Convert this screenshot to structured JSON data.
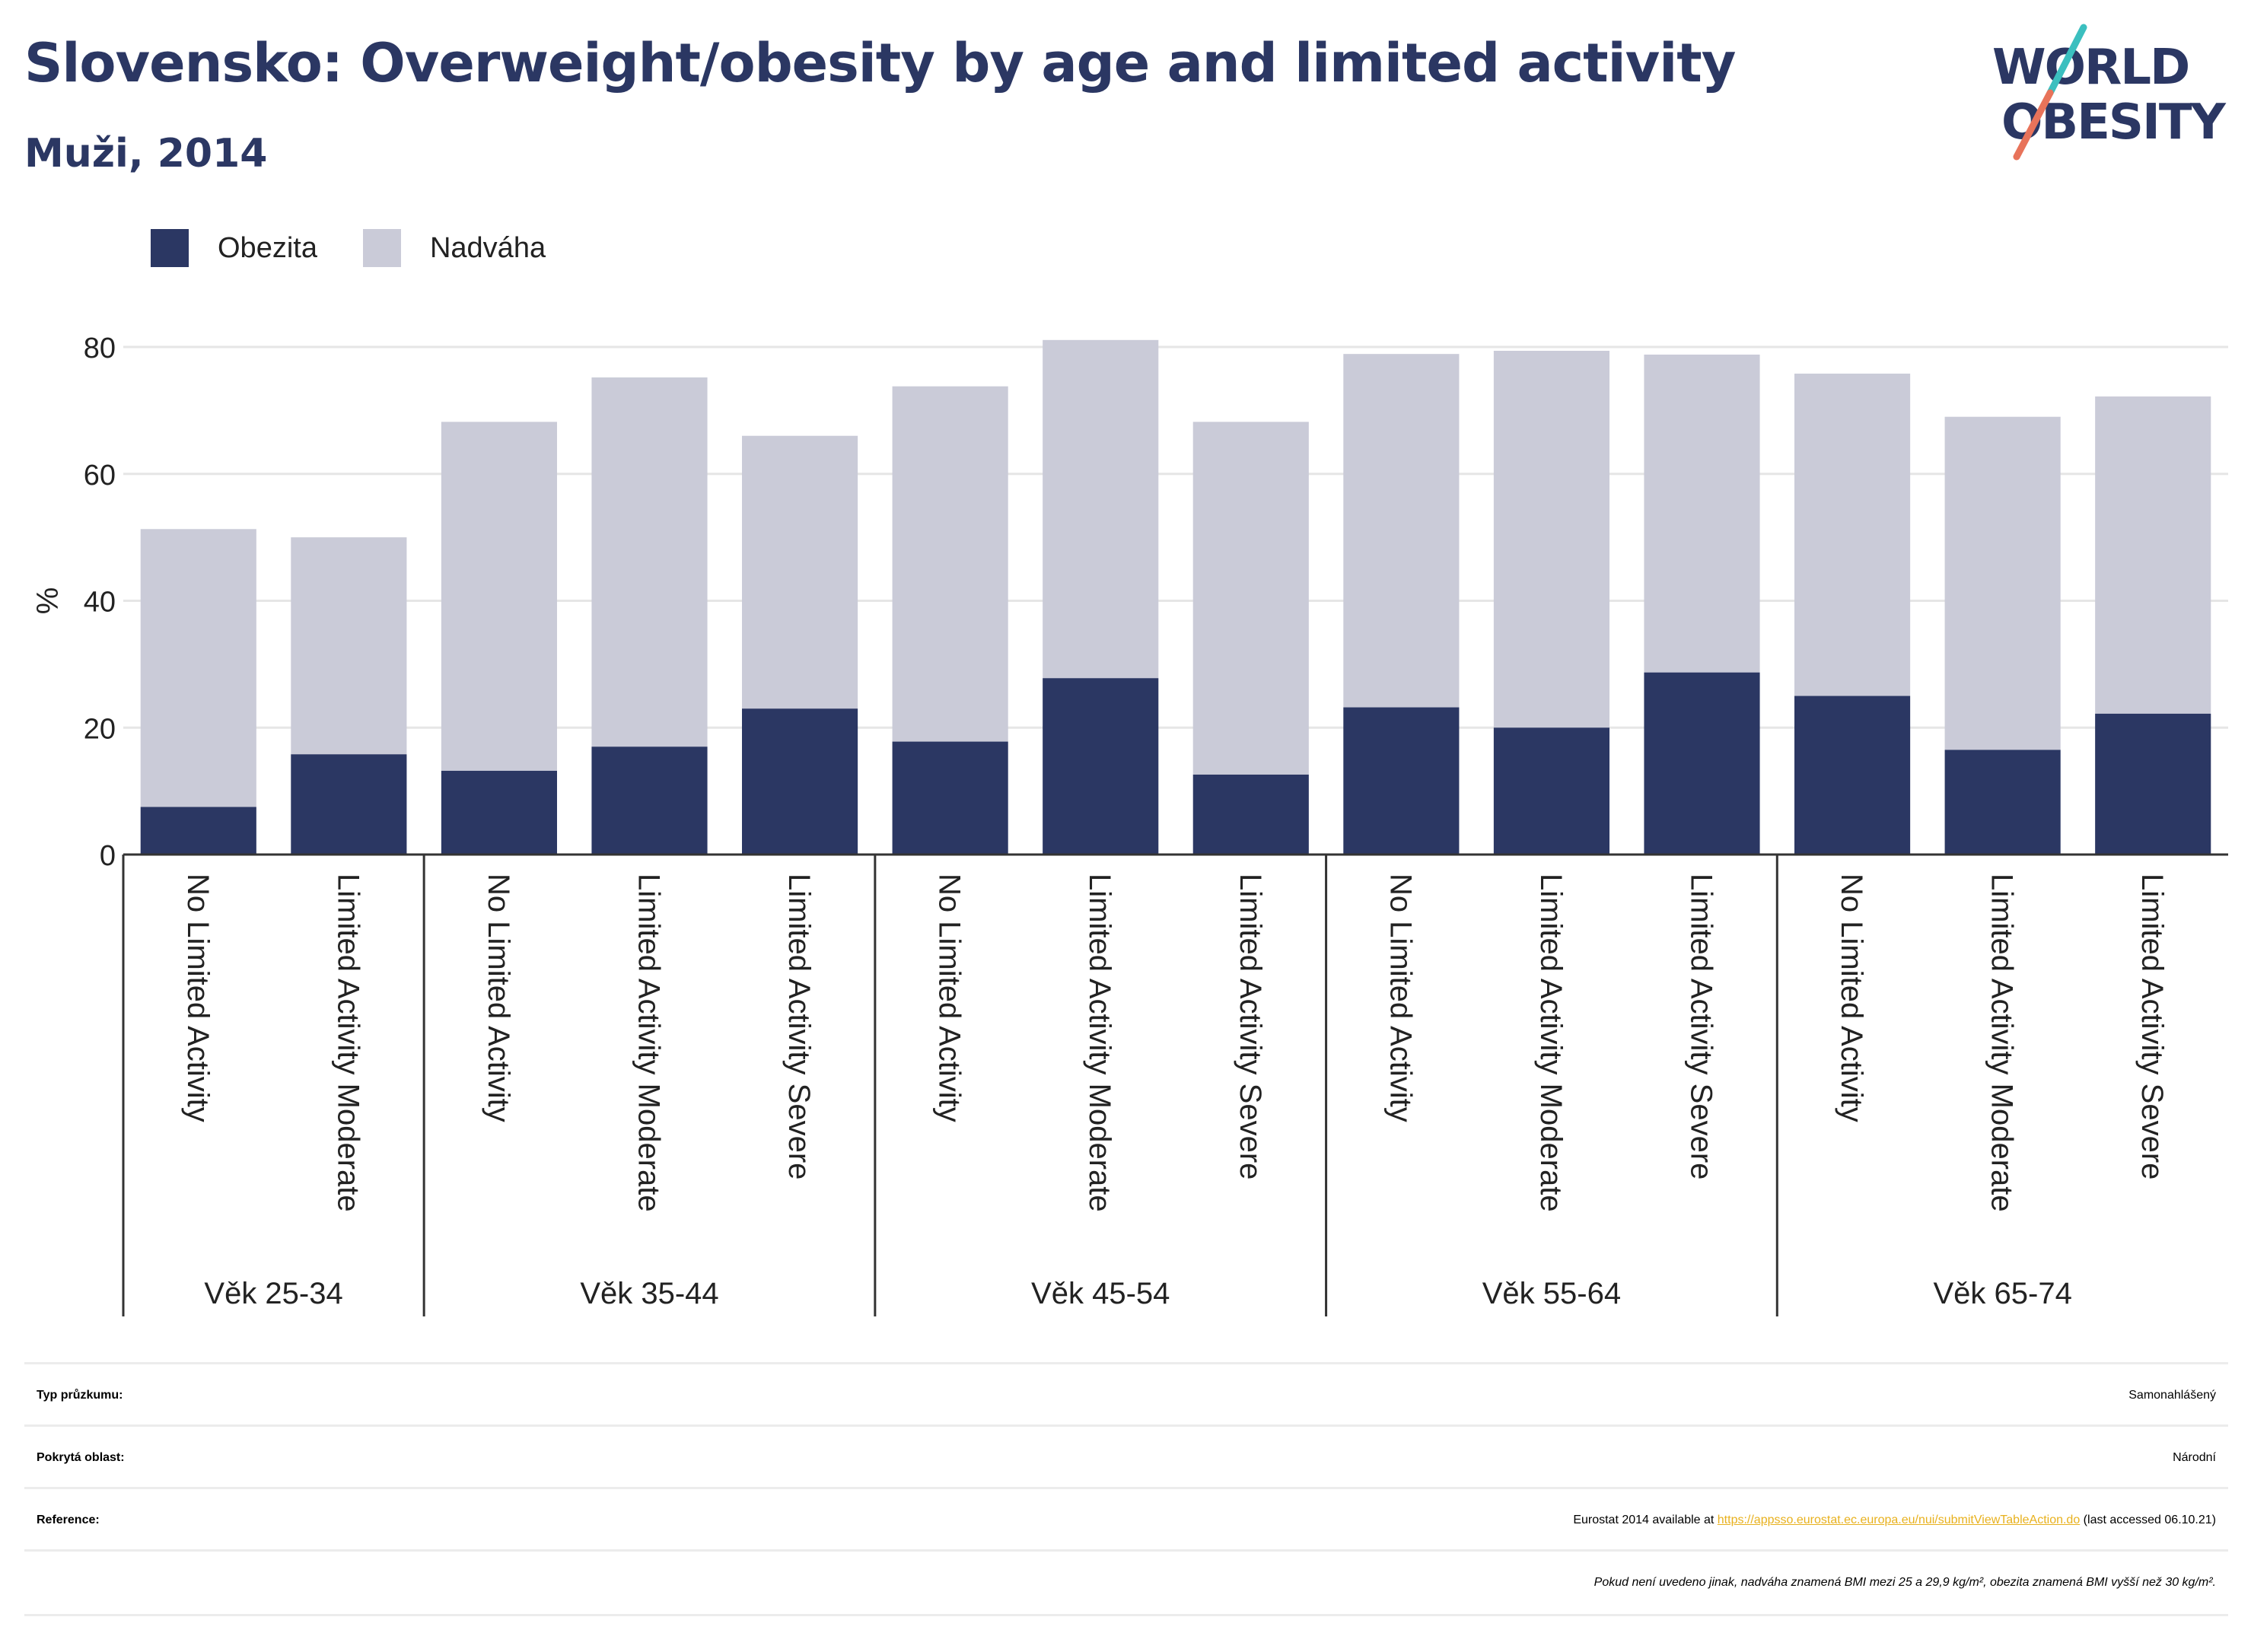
{
  "title": "Slovensko: Overweight/obesity by age and limited activity",
  "subtitle": "Muži, 2014",
  "logo": {
    "line1": "WORLD",
    "line2": "OBESITY",
    "colors": {
      "text": "#2b3763",
      "slash_top": "#3bbfbf",
      "slash_bottom": "#e8735a"
    }
  },
  "colors": {
    "obezita": "#2b3763",
    "nadvaha": "#cacbd8",
    "grid": "#e6e6e6",
    "axis": "#333333"
  },
  "chart_data": {
    "type": "bar",
    "stacked": true,
    "ylabel": "%",
    "ylim": [
      0,
      90
    ],
    "yticks": [
      0,
      20,
      40,
      60,
      80
    ],
    "grid": true,
    "legend_position": "top-left",
    "series": [
      {
        "name": "Obezita",
        "values": [
          7.5,
          15.8,
          13.2,
          17.0,
          23.0,
          17.8,
          27.8,
          12.6,
          23.2,
          20.0,
          28.7,
          25.0,
          16.5,
          22.2
        ]
      },
      {
        "name": "Nadváha",
        "values": [
          43.8,
          34.2,
          55.0,
          58.2,
          43.0,
          56.0,
          53.3,
          55.6,
          55.7,
          59.4,
          50.1,
          50.8,
          52.5,
          50.0
        ]
      }
    ],
    "categories": [
      "No Limited Activity",
      "Limited Activity Moderate",
      "No Limited Activity",
      "Limited Activity Moderate",
      "Limited Activity Severe",
      "No Limited Activity",
      "Limited Activity Moderate",
      "Limited Activity Severe",
      "No Limited Activity",
      "Limited Activity Moderate",
      "Limited Activity Severe",
      "No Limited Activity",
      "Limited Activity Moderate",
      "Limited Activity Severe"
    ],
    "groups": [
      {
        "label": "Věk 25-34",
        "count": 2
      },
      {
        "label": "Věk 35-44",
        "count": 3
      },
      {
        "label": "Věk 45-54",
        "count": 3
      },
      {
        "label": "Věk 55-64",
        "count": 3
      },
      {
        "label": "Věk 65-74",
        "count": 3
      }
    ]
  },
  "info": {
    "survey_type_label": "Typ průzkumu:",
    "survey_type_value": "Samonahlášený",
    "coverage_label": "Pokrytá oblast:",
    "coverage_value": "Národní",
    "reference_label": "Reference:",
    "reference_prefix": "Eurostat 2014 available at ",
    "reference_link": "https://appsso.eurostat.ec.europa.eu/nui/submitViewTableAction.do",
    "reference_suffix": " (last accessed 06.10.21)",
    "note": "Pokud není uvedeno jinak, nadváha znamená BMI mezi 25 a 29,9 kg/m², obezita znamená BMI vyšší než 30 kg/m²."
  }
}
